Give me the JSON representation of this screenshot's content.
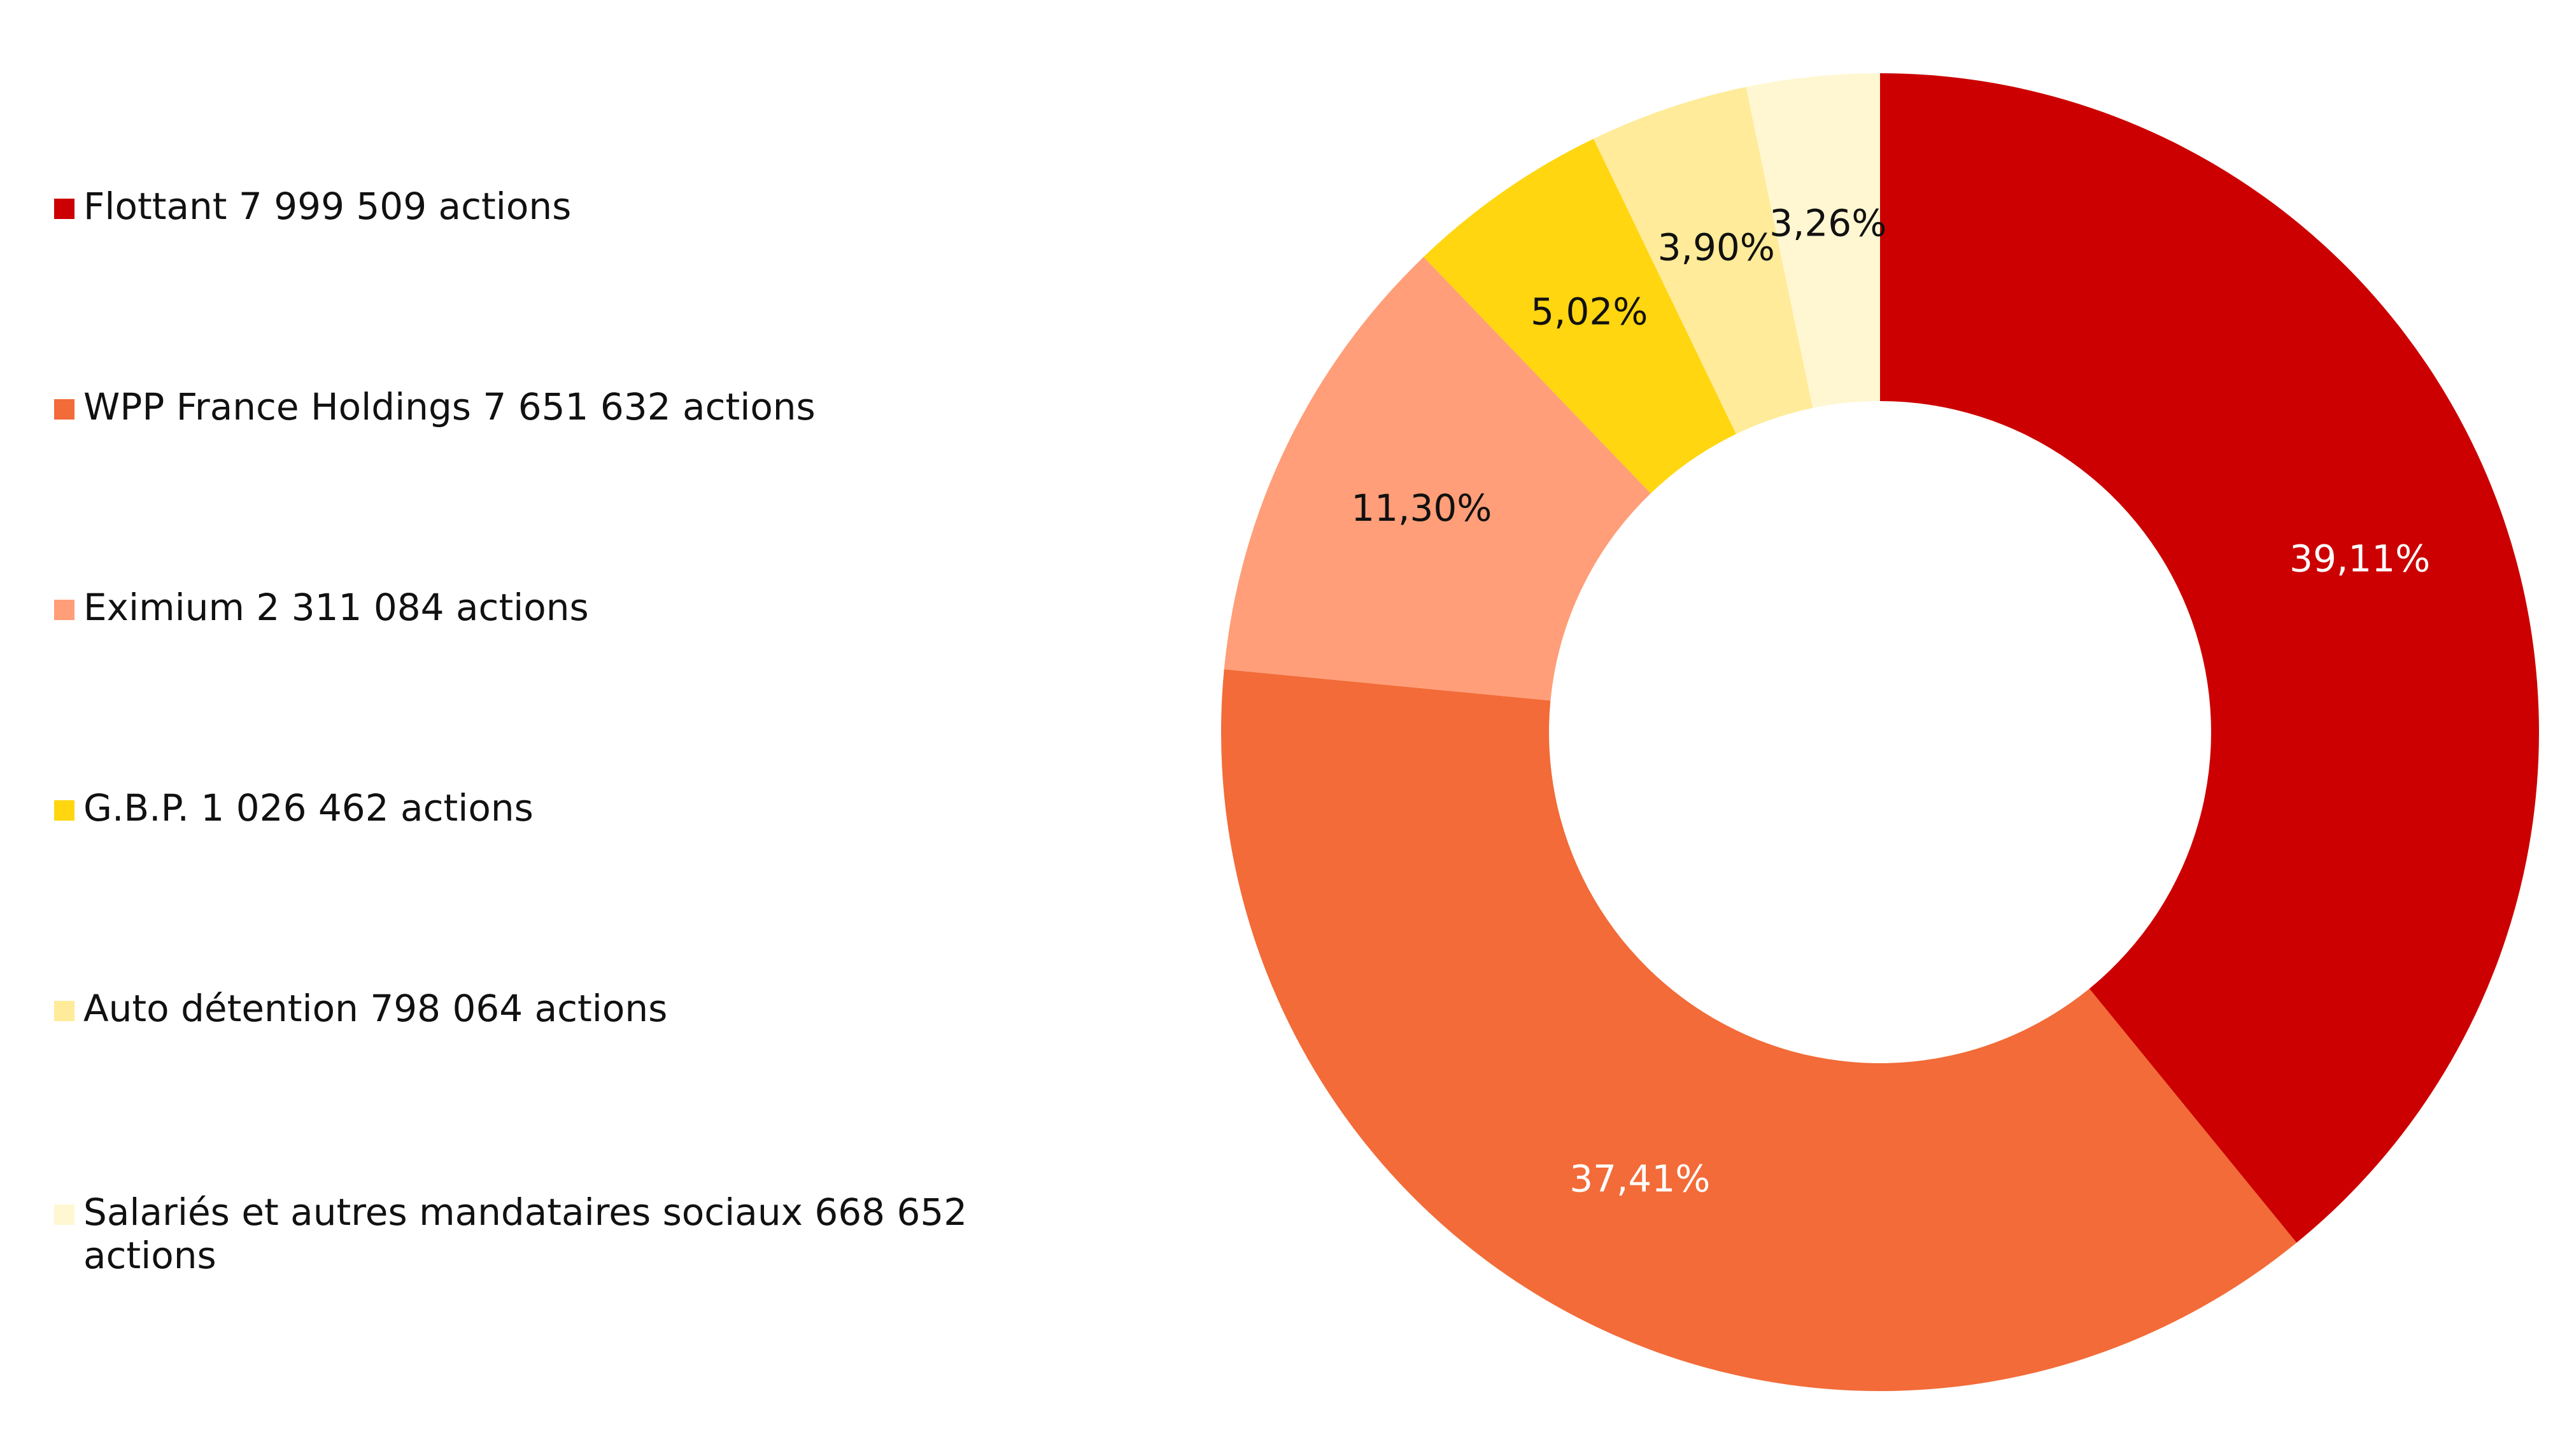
{
  "chart_data": {
    "type": "pie",
    "donut": true,
    "legend_position": "left",
    "slices": [
      {
        "label": "Flottant 7 999 509 actions",
        "value": 39.11,
        "value_label": "39,11%",
        "color": "#CC0000",
        "label_color": "#ffffff"
      },
      {
        "label": "WPP France Holdings 7 651 632 actions",
        "value": 37.41,
        "value_label": "37,41%",
        "color": "#F26B38",
        "label_color": "#ffffff"
      },
      {
        "label": "Eximium 2 311 084 actions",
        "value": 11.3,
        "value_label": "11,30%",
        "color": "#FF9E78",
        "label_color": "#111111"
      },
      {
        "label": "G.B.P. 1 026 462 actions",
        "value": 5.02,
        "value_label": "5,02%",
        "color": "#FFD60F",
        "label_color": "#111111"
      },
      {
        "label": "Auto détention 798 064 actions",
        "value": 3.9,
        "value_label": "3,90%",
        "color": "#FFEB99",
        "label_color": "#111111"
      },
      {
        "label": "Salariés et autres mandataires sociaux 668 652 actions",
        "value": 3.26,
        "value_label": "3,26%",
        "color": "#FFF7D1",
        "label_color": "#111111"
      }
    ]
  }
}
